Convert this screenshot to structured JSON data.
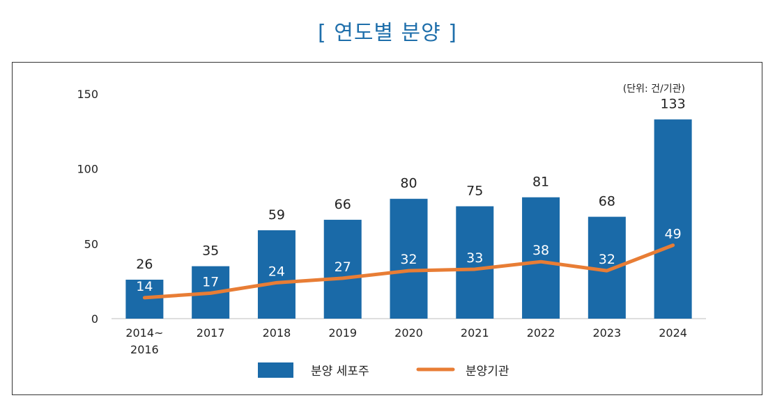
{
  "title": "[ 연도별 분양 ]",
  "chart_data": {
    "type": "bar",
    "categories": [
      [
        "2014~",
        "2016"
      ],
      [
        "2017"
      ],
      [
        "2018"
      ],
      [
        "2019"
      ],
      [
        "2020"
      ],
      [
        "2021"
      ],
      [
        "2022"
      ],
      [
        "2023"
      ],
      [
        "2024"
      ]
    ],
    "series": [
      {
        "name": "분양 세포주",
        "type": "bar",
        "values": [
          26,
          35,
          59,
          66,
          80,
          75,
          81,
          68,
          133
        ],
        "color": "#1a6aa8"
      },
      {
        "name": "분양기관",
        "type": "line",
        "values": [
          14,
          17,
          24,
          27,
          32,
          33,
          38,
          32,
          49
        ],
        "color": "#e87d35"
      }
    ],
    "yticks": [
      0,
      50,
      100,
      150
    ],
    "ylim": [
      0,
      150
    ],
    "unit_note": "(단위: 건/기관)",
    "grid": false,
    "legend_position": "bottom-center"
  }
}
